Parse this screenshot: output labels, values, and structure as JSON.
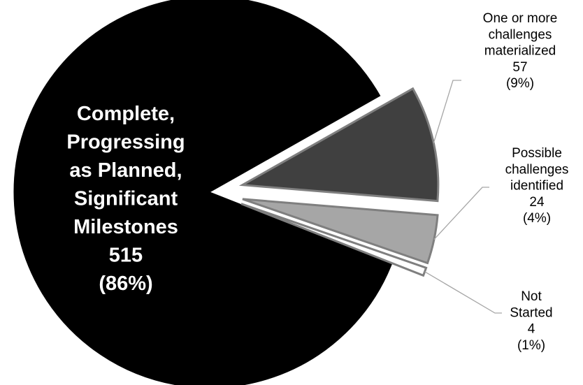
{
  "chart_data": {
    "type": "pie",
    "title": "",
    "exploded": true,
    "slices": [
      {
        "key": "complete",
        "label_lines": [
          "Complete,",
          "Progressing",
          "as Planned,",
          "Significant",
          "Milestones"
        ],
        "value": 515,
        "percent": "(86%)",
        "color": "#000000"
      },
      {
        "key": "materialized",
        "label_lines": [
          "One or more",
          "challenges",
          "materialized"
        ],
        "value": 57,
        "percent": "(9%)",
        "color": "#404040"
      },
      {
        "key": "possible",
        "label_lines": [
          "Possible",
          "challenges",
          "identified"
        ],
        "value": 24,
        "percent": "(4%)",
        "color": "#a6a6a6"
      },
      {
        "key": "not_started",
        "label_lines": [
          "Not",
          "Started"
        ],
        "value": 4,
        "percent": "(1%)",
        "color": "#ffffff"
      }
    ]
  }
}
